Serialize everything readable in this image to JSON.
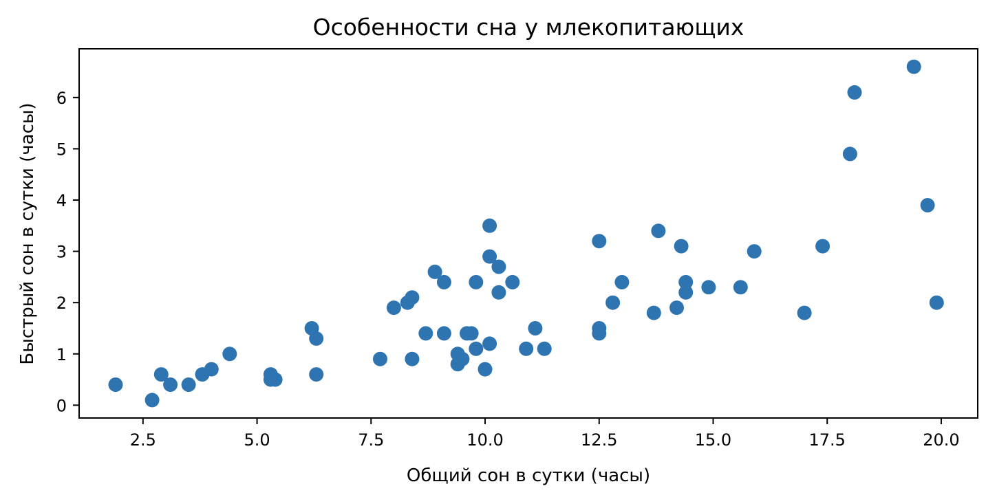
{
  "chart_data": {
    "type": "scatter",
    "title": "Особенности сна у млекопитающих",
    "xlabel": "Общий сон в сутки (часы)",
    "ylabel": "Быстрый сон в сутки (часы)",
    "xlim": [
      1.1,
      20.8
    ],
    "ylim": [
      -0.25,
      6.95
    ],
    "xticks": [
      2.5,
      5.0,
      7.5,
      10.0,
      12.5,
      15.0,
      17.5,
      20.0
    ],
    "xtick_labels": [
      "2.5",
      "5.0",
      "7.5",
      "10.0",
      "12.5",
      "15.0",
      "17.5",
      "20.0"
    ],
    "yticks": [
      0,
      1,
      2,
      3,
      4,
      5,
      6
    ],
    "ytick_labels": [
      "0",
      "1",
      "2",
      "3",
      "4",
      "5",
      "6"
    ],
    "grid": false,
    "marker_color": "#2e74b0",
    "points": [
      {
        "x": 1.9,
        "y": 0.4
      },
      {
        "x": 2.7,
        "y": 0.1
      },
      {
        "x": 2.9,
        "y": 0.6
      },
      {
        "x": 3.1,
        "y": 0.4
      },
      {
        "x": 3.5,
        "y": 0.4
      },
      {
        "x": 3.8,
        "y": 0.6
      },
      {
        "x": 4.0,
        "y": 0.7
      },
      {
        "x": 4.4,
        "y": 1.0
      },
      {
        "x": 5.3,
        "y": 0.6
      },
      {
        "x": 5.3,
        "y": 0.5
      },
      {
        "x": 5.4,
        "y": 0.5
      },
      {
        "x": 6.2,
        "y": 1.5
      },
      {
        "x": 6.3,
        "y": 1.3
      },
      {
        "x": 6.3,
        "y": 0.6
      },
      {
        "x": 7.7,
        "y": 0.9
      },
      {
        "x": 8.0,
        "y": 1.9
      },
      {
        "x": 8.3,
        "y": 2.0
      },
      {
        "x": 8.4,
        "y": 2.1
      },
      {
        "x": 8.4,
        "y": 0.9
      },
      {
        "x": 8.7,
        "y": 1.4
      },
      {
        "x": 8.9,
        "y": 2.6
      },
      {
        "x": 9.1,
        "y": 2.4
      },
      {
        "x": 9.1,
        "y": 1.4
      },
      {
        "x": 9.4,
        "y": 1.0
      },
      {
        "x": 9.4,
        "y": 0.8
      },
      {
        "x": 9.5,
        "y": 0.9
      },
      {
        "x": 9.6,
        "y": 1.4
      },
      {
        "x": 9.7,
        "y": 1.4
      },
      {
        "x": 9.8,
        "y": 2.4
      },
      {
        "x": 9.8,
        "y": 1.1
      },
      {
        "x": 10.0,
        "y": 0.7
      },
      {
        "x": 10.1,
        "y": 3.5
      },
      {
        "x": 10.1,
        "y": 2.9
      },
      {
        "x": 10.1,
        "y": 1.2
      },
      {
        "x": 10.3,
        "y": 2.7
      },
      {
        "x": 10.3,
        "y": 2.2
      },
      {
        "x": 10.6,
        "y": 2.4
      },
      {
        "x": 10.9,
        "y": 1.1
      },
      {
        "x": 11.1,
        "y": 1.5
      },
      {
        "x": 11.3,
        "y": 1.1
      },
      {
        "x": 12.5,
        "y": 3.2
      },
      {
        "x": 12.5,
        "y": 1.5
      },
      {
        "x": 12.5,
        "y": 1.4
      },
      {
        "x": 12.8,
        "y": 2.0
      },
      {
        "x": 13.0,
        "y": 2.4
      },
      {
        "x": 13.7,
        "y": 1.8
      },
      {
        "x": 13.8,
        "y": 3.4
      },
      {
        "x": 14.2,
        "y": 1.9
      },
      {
        "x": 14.3,
        "y": 3.1
      },
      {
        "x": 14.4,
        "y": 2.4
      },
      {
        "x": 14.4,
        "y": 2.2
      },
      {
        "x": 14.9,
        "y": 2.3
      },
      {
        "x": 15.6,
        "y": 2.3
      },
      {
        "x": 15.9,
        "y": 3.0
      },
      {
        "x": 17.0,
        "y": 1.8
      },
      {
        "x": 17.4,
        "y": 3.1
      },
      {
        "x": 18.0,
        "y": 4.9
      },
      {
        "x": 18.1,
        "y": 6.1
      },
      {
        "x": 19.4,
        "y": 6.6
      },
      {
        "x": 19.7,
        "y": 3.9
      },
      {
        "x": 19.9,
        "y": 2.0
      }
    ]
  }
}
